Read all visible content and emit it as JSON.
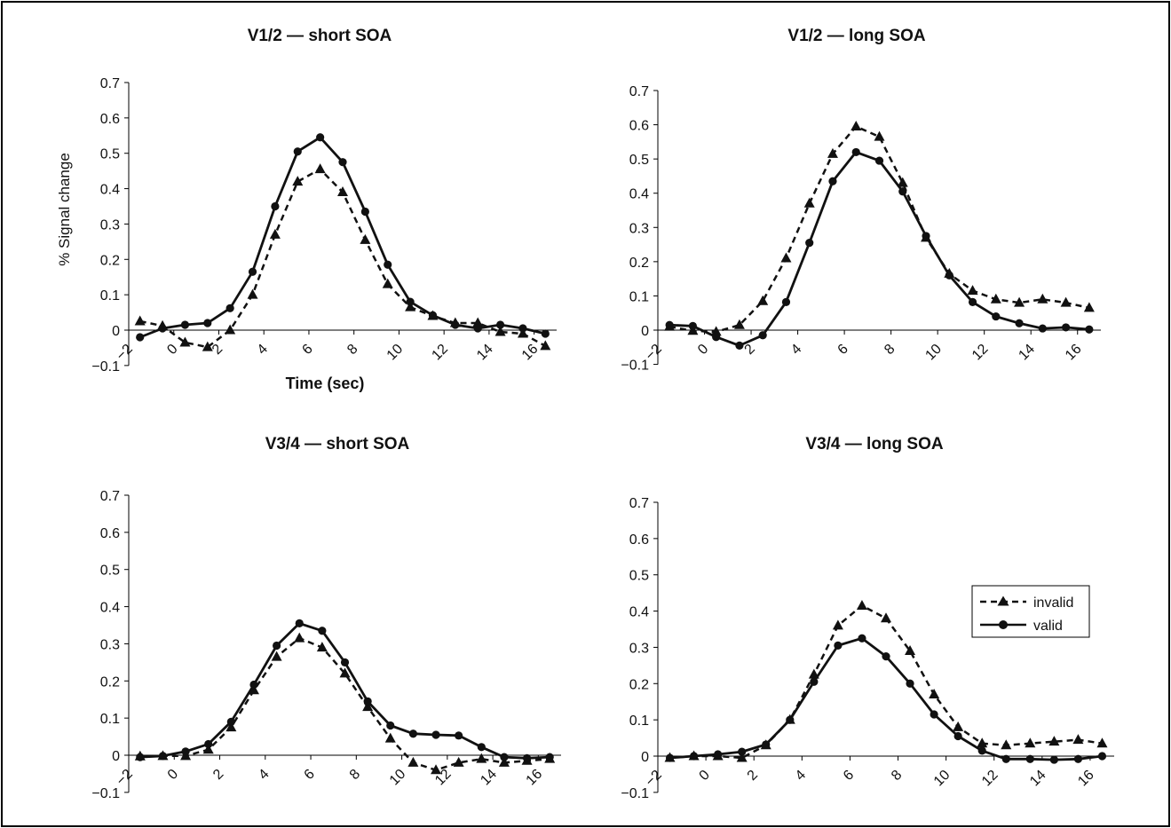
{
  "chart_data": [
    {
      "type": "line",
      "title": "V1/2 — short SOA",
      "ylabel": "% Signal change",
      "xlabel": "Time (sec)",
      "ylim": [
        -0.1,
        0.7
      ],
      "xlim": [
        -2,
        17
      ],
      "yticks": [
        "−0.1",
        "0",
        "0.1",
        "0.2",
        "0.3",
        "0.4",
        "0.5",
        "0.6",
        "0.7"
      ],
      "xticks": [
        "−2",
        "0",
        "2",
        "4",
        "6",
        "8",
        "10",
        "12",
        "14",
        "16"
      ],
      "x": [
        -1.5,
        -0.5,
        0.5,
        1.5,
        2.5,
        3.5,
        4.5,
        5.5,
        6.5,
        7.5,
        8.5,
        9.5,
        10.5,
        11.5,
        12.5,
        13.5,
        14.5,
        15.5,
        16.5
      ],
      "series": [
        {
          "name": "invalid",
          "style": "dashed-triangle",
          "values": [
            0.025,
            0.012,
            -0.035,
            -0.048,
            0.0,
            0.1,
            0.27,
            0.42,
            0.455,
            0.39,
            0.255,
            0.13,
            0.065,
            0.04,
            0.02,
            0.02,
            -0.005,
            -0.01,
            -0.045
          ]
        },
        {
          "name": "valid",
          "style": "solid-circle",
          "values": [
            -0.02,
            0.005,
            0.015,
            0.02,
            0.062,
            0.165,
            0.35,
            0.505,
            0.545,
            0.475,
            0.335,
            0.185,
            0.08,
            0.042,
            0.015,
            0.005,
            0.015,
            0.005,
            -0.01
          ]
        }
      ]
    },
    {
      "type": "line",
      "title": "V1/2 — long SOA",
      "ylim": [
        -0.1,
        0.7
      ],
      "xlim": [
        -2,
        17
      ],
      "yticks": [
        "−0.1",
        "0",
        "0.1",
        "0.2",
        "0.3",
        "0.4",
        "0.5",
        "0.6",
        "0.7"
      ],
      "xticks": [
        "−2",
        "0",
        "2",
        "4",
        "6",
        "8",
        "10",
        "12",
        "14",
        "16"
      ],
      "x": [
        -1.5,
        -0.5,
        0.5,
        1.5,
        2.5,
        3.5,
        4.5,
        5.5,
        6.5,
        7.5,
        8.5,
        9.5,
        10.5,
        11.5,
        12.5,
        13.5,
        14.5,
        15.5,
        16.5
      ],
      "series": [
        {
          "name": "invalid",
          "style": "dashed-triangle",
          "values": [
            0.01,
            -0.002,
            -0.005,
            0.015,
            0.085,
            0.21,
            0.37,
            0.515,
            0.595,
            0.565,
            0.43,
            0.27,
            0.165,
            0.115,
            0.09,
            0.08,
            0.09,
            0.08,
            0.065
          ]
        },
        {
          "name": "valid",
          "style": "solid-circle",
          "values": [
            0.015,
            0.012,
            -0.02,
            -0.045,
            -0.015,
            0.082,
            0.255,
            0.435,
            0.52,
            0.495,
            0.405,
            0.275,
            0.16,
            0.082,
            0.04,
            0.02,
            0.005,
            0.008,
            0.002
          ]
        }
      ]
    },
    {
      "type": "line",
      "title": "V3/4 — short SOA",
      "ylim": [
        -0.1,
        0.7
      ],
      "xlim": [
        -2,
        17
      ],
      "yticks": [
        "−0.1",
        "0",
        "0.1",
        "0.2",
        "0.3",
        "0.4",
        "0.5",
        "0.6",
        "0.7"
      ],
      "xticks": [
        "−2",
        "0",
        "2",
        "4",
        "6",
        "8",
        "10",
        "12",
        "14",
        "16"
      ],
      "x": [
        -1.5,
        -0.5,
        0.5,
        1.5,
        2.5,
        3.5,
        4.5,
        5.5,
        6.5,
        7.5,
        8.5,
        9.5,
        10.5,
        11.5,
        12.5,
        13.5,
        14.5,
        15.5,
        16.5
      ],
      "series": [
        {
          "name": "invalid",
          "style": "dashed-triangle",
          "values": [
            -0.003,
            -0.002,
            -0.002,
            0.015,
            0.075,
            0.175,
            0.265,
            0.315,
            0.29,
            0.22,
            0.13,
            0.045,
            -0.02,
            -0.04,
            -0.02,
            -0.01,
            -0.02,
            -0.015,
            -0.01
          ]
        },
        {
          "name": "valid",
          "style": "solid-circle",
          "values": [
            -0.005,
            -0.002,
            0.01,
            0.03,
            0.09,
            0.19,
            0.295,
            0.355,
            0.335,
            0.25,
            0.145,
            0.08,
            0.058,
            0.055,
            0.053,
            0.022,
            -0.005,
            -0.008,
            -0.005
          ]
        }
      ]
    },
    {
      "type": "line",
      "title": "V3/4 — long SOA",
      "ylim": [
        -0.1,
        0.7
      ],
      "xlim": [
        -2,
        17
      ],
      "yticks": [
        "−0.1",
        "0",
        "0.1",
        "0.2",
        "0.3",
        "0.4",
        "0.5",
        "0.6",
        "0.7"
      ],
      "xticks": [
        "−2",
        "0",
        "2",
        "4",
        "6",
        "8",
        "10",
        "12",
        "14",
        "16"
      ],
      "x": [
        -1.5,
        -0.5,
        0.5,
        1.5,
        2.5,
        3.5,
        4.5,
        5.5,
        6.5,
        7.5,
        8.5,
        9.5,
        10.5,
        11.5,
        12.5,
        13.5,
        14.5,
        15.5,
        16.5
      ],
      "legend": {
        "position": "right",
        "entries": [
          "invalid",
          "valid"
        ]
      },
      "series": [
        {
          "name": "invalid",
          "style": "dashed-triangle",
          "values": [
            -0.005,
            0.0,
            0.0,
            -0.005,
            0.03,
            0.1,
            0.225,
            0.36,
            0.415,
            0.38,
            0.29,
            0.17,
            0.08,
            0.035,
            0.03,
            0.035,
            0.04,
            0.045,
            0.035
          ]
        },
        {
          "name": "valid",
          "style": "solid-circle",
          "values": [
            -0.005,
            0.0,
            0.005,
            0.012,
            0.032,
            0.1,
            0.205,
            0.305,
            0.325,
            0.275,
            0.2,
            0.115,
            0.055,
            0.015,
            -0.008,
            -0.008,
            -0.01,
            -0.008,
            0.0
          ]
        }
      ]
    }
  ],
  "colors": {
    "line": "#111111",
    "frame": "#000000",
    "background": "#ffffff"
  }
}
